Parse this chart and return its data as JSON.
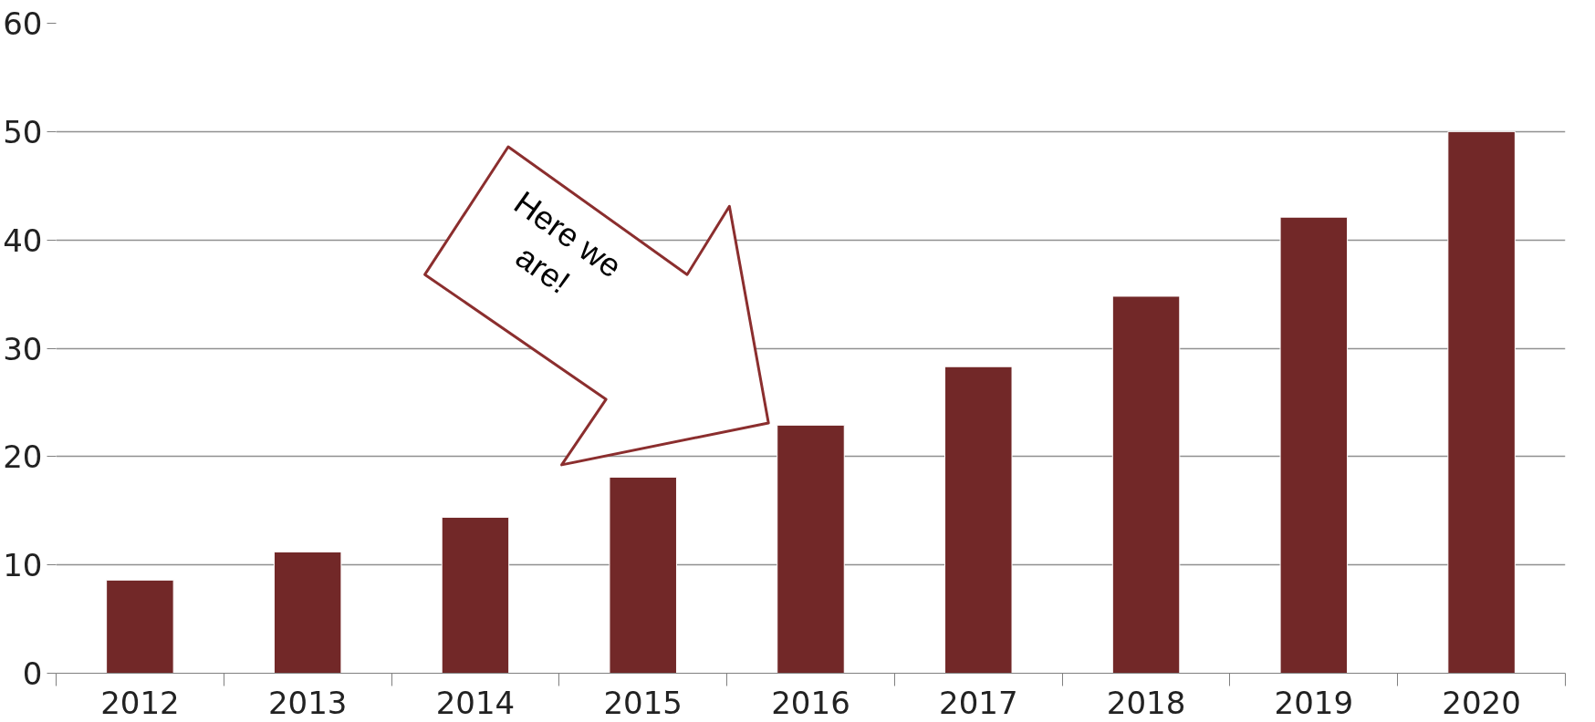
{
  "chart_data": {
    "type": "bar",
    "categories": [
      "2012",
      "2013",
      "2014",
      "2015",
      "2016",
      "2017",
      "2018",
      "2019",
      "2020"
    ],
    "values": [
      8.6,
      11.2,
      14.4,
      18.1,
      22.9,
      28.3,
      34.8,
      42.1,
      50
    ],
    "color": "#722828",
    "ylim": [
      0,
      60
    ],
    "yticks": [
      0,
      10,
      20,
      30,
      40,
      50,
      60
    ],
    "grid": "y",
    "annotations": [
      "Here we\nare!"
    ]
  }
}
